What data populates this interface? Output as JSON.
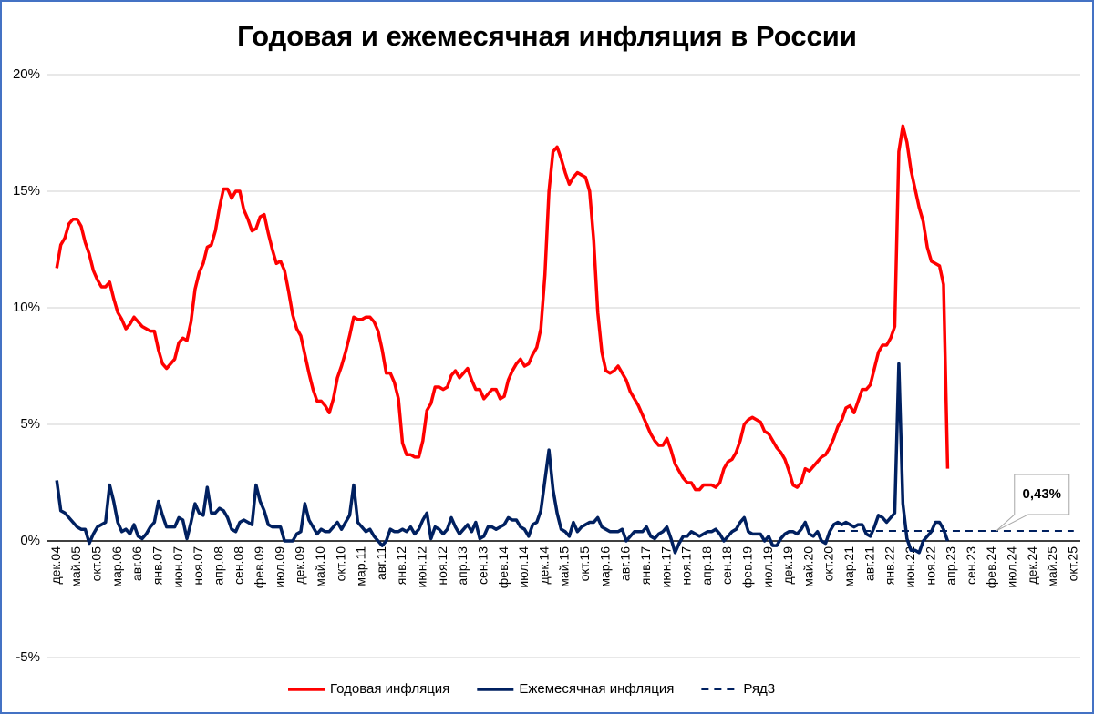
{
  "chart_data": {
    "type": "line",
    "title": "Годовая и ежемесячная инфляция в России",
    "categories": [
      "дек.04",
      null,
      null,
      null,
      null,
      "май.05",
      null,
      null,
      null,
      null,
      "окт.05",
      null,
      null,
      null,
      null,
      "мар.06",
      null,
      null,
      null,
      null,
      "авг.06",
      null,
      null,
      null,
      null,
      "янв.07",
      null,
      null,
      null,
      null,
      "июн.07",
      null,
      null,
      null,
      null,
      "ноя.07",
      null,
      null,
      null,
      null,
      "апр.08",
      null,
      null,
      null,
      null,
      "сен.08",
      null,
      null,
      null,
      null,
      "фев.09",
      null,
      null,
      null,
      null,
      "июл.09",
      null,
      null,
      null,
      null,
      "дек.09",
      null,
      null,
      null,
      null,
      "май.10",
      null,
      null,
      null,
      null,
      "окт.10",
      null,
      null,
      null,
      null,
      "мар.11",
      null,
      null,
      null,
      null,
      "авг.11",
      null,
      null,
      null,
      null,
      "янв.12",
      null,
      null,
      null,
      null,
      "июн.12",
      null,
      null,
      null,
      null,
      "ноя.12",
      null,
      null,
      null,
      null,
      "апр.13",
      null,
      null,
      null,
      null,
      "сен.13",
      null,
      null,
      null,
      null,
      "фев.14",
      null,
      null,
      null,
      null,
      "июл.14",
      null,
      null,
      null,
      null,
      "дек.14",
      null,
      null,
      null,
      null,
      "май.15",
      null,
      null,
      null,
      null,
      "окт.15",
      null,
      null,
      null,
      null,
      "мар.16",
      null,
      null,
      null,
      null,
      "авг.16",
      null,
      null,
      null,
      null,
      "янв.17",
      null,
      null,
      null,
      null,
      "июн.17",
      null,
      null,
      null,
      null,
      "ноя.17",
      null,
      null,
      null,
      null,
      "апр.18",
      null,
      null,
      null,
      null,
      "сен.18",
      null,
      null,
      null,
      null,
      "фев.19",
      null,
      null,
      null,
      null,
      "июл.19",
      null,
      null,
      null,
      null,
      "дек.19",
      null,
      null,
      null,
      null,
      "май.20",
      null,
      null,
      null,
      null,
      "окт.20",
      null,
      null,
      null,
      null,
      "мар.21",
      null,
      null,
      null,
      null,
      "авг.21",
      null,
      null,
      null,
      null,
      "янв.22",
      null,
      null,
      null,
      null,
      "июн.22",
      null,
      null,
      null,
      null,
      "ноя.22",
      null,
      null,
      null,
      null,
      "апр.23",
      null,
      null,
      null,
      null,
      "сен.23",
      null,
      null,
      null,
      null,
      "фев.24",
      null,
      null,
      null,
      null,
      "июл.24",
      null,
      null,
      null,
      null,
      "дек.24",
      null,
      null,
      null,
      null,
      "май.25",
      null,
      null,
      null,
      null,
      "окт.25"
    ],
    "series": [
      {
        "name": "Годовая инфляция",
        "color": "#ff0000",
        "dash": false,
        "values": [
          11.7,
          12.7,
          13.0,
          13.6,
          13.8,
          13.8,
          13.5,
          12.8,
          12.3,
          11.6,
          11.2,
          10.9,
          10.9,
          11.1,
          10.4,
          9.8,
          9.5,
          9.1,
          9.3,
          9.6,
          9.4,
          9.2,
          9.1,
          9.0,
          9.0,
          8.2,
          7.6,
          7.4,
          7.6,
          7.8,
          8.5,
          8.7,
          8.6,
          9.4,
          10.8,
          11.5,
          11.9,
          12.6,
          12.7,
          13.3,
          14.3,
          15.1,
          15.1,
          14.7,
          15.0,
          15.0,
          14.2,
          13.8,
          13.3,
          13.4,
          13.9,
          14.0,
          13.2,
          12.5,
          11.9,
          12.0,
          11.6,
          10.7,
          9.7,
          9.1,
          8.8,
          8.0,
          7.2,
          6.5,
          6.0,
          6.0,
          5.8,
          5.5,
          6.1,
          7.0,
          7.5,
          8.1,
          8.8,
          9.6,
          9.5,
          9.5,
          9.6,
          9.6,
          9.4,
          9.0,
          8.2,
          7.2,
          7.2,
          6.8,
          6.1,
          4.2,
          3.7,
          3.7,
          3.6,
          3.6,
          4.3,
          5.6,
          5.9,
          6.6,
          6.6,
          6.5,
          6.6,
          7.1,
          7.3,
          7.0,
          7.2,
          7.4,
          6.9,
          6.5,
          6.5,
          6.1,
          6.3,
          6.5,
          6.5,
          6.1,
          6.2,
          6.9,
          7.3,
          7.6,
          7.8,
          7.5,
          7.6,
          8.0,
          8.3,
          9.1,
          11.4,
          15.0,
          16.7,
          16.9,
          16.4,
          15.8,
          15.3,
          15.6,
          15.8,
          15.7,
          15.6,
          15.0,
          12.9,
          9.8,
          8.1,
          7.3,
          7.2,
          7.3,
          7.5,
          7.2,
          6.9,
          6.4,
          6.1,
          5.8,
          5.4,
          5.0,
          4.6,
          4.3,
          4.1,
          4.1,
          4.4,
          3.9,
          3.3,
          3.0,
          2.7,
          2.5,
          2.5,
          2.2,
          2.2,
          2.4,
          2.4,
          2.4,
          2.3,
          2.5,
          3.1,
          3.4,
          3.5,
          3.8,
          4.3,
          5.0,
          5.2,
          5.3,
          5.2,
          5.1,
          4.7,
          4.6,
          4.3,
          4.0,
          3.8,
          3.5,
          3.0,
          2.4,
          2.3,
          2.5,
          3.1,
          3.0,
          3.2,
          3.4,
          3.6,
          3.7,
          4.0,
          4.4,
          4.9,
          5.2,
          5.7,
          5.8,
          5.5,
          6.0,
          6.5,
          6.5,
          6.7,
          7.4,
          8.1,
          8.4,
          8.4,
          8.7,
          9.2,
          16.7,
          17.8,
          17.1,
          15.9,
          15.1,
          14.3,
          13.7,
          12.6,
          12.0,
          11.9,
          11.8,
          11.0,
          3.1,
          null,
          null,
          null,
          null,
          null,
          null,
          null,
          null,
          null,
          null,
          null,
          null,
          null,
          null,
          null,
          null,
          null,
          null,
          null,
          null,
          null,
          null,
          null,
          null,
          null,
          null,
          null,
          null,
          null,
          null,
          null
        ]
      },
      {
        "name": "Ежемесячная инфляция",
        "color": "#002060",
        "dash": false,
        "values": [
          2.6,
          1.3,
          1.2,
          1.0,
          0.8,
          0.6,
          0.5,
          0.5,
          -0.1,
          0.3,
          0.6,
          0.7,
          0.8,
          2.4,
          1.7,
          0.8,
          0.4,
          0.5,
          0.3,
          0.7,
          0.2,
          0.1,
          0.3,
          0.6,
          0.8,
          1.7,
          1.1,
          0.6,
          0.6,
          0.6,
          1.0,
          0.9,
          0.1,
          0.8,
          1.6,
          1.2,
          1.1,
          2.3,
          1.2,
          1.2,
          1.4,
          1.3,
          1.0,
          0.5,
          0.4,
          0.8,
          0.9,
          0.8,
          0.7,
          2.4,
          1.7,
          1.3,
          0.7,
          0.6,
          0.6,
          0.6,
          0.0,
          0.0,
          0.0,
          0.3,
          0.4,
          1.6,
          0.9,
          0.6,
          0.3,
          0.5,
          0.4,
          0.4,
          0.6,
          0.8,
          0.5,
          0.8,
          1.1,
          2.4,
          0.8,
          0.6,
          0.4,
          0.5,
          0.2,
          0.0,
          -0.2,
          0.0,
          0.5,
          0.4,
          0.4,
          0.5,
          0.4,
          0.6,
          0.3,
          0.5,
          0.9,
          1.2,
          0.1,
          0.6,
          0.5,
          0.3,
          0.5,
          1.0,
          0.6,
          0.3,
          0.5,
          0.7,
          0.4,
          0.8,
          0.1,
          0.2,
          0.6,
          0.6,
          0.5,
          0.6,
          0.7,
          1.0,
          0.9,
          0.9,
          0.6,
          0.5,
          0.2,
          0.7,
          0.8,
          1.3,
          2.6,
          3.9,
          2.2,
          1.2,
          0.5,
          0.4,
          0.2,
          0.8,
          0.4,
          0.6,
          0.7,
          0.8,
          0.8,
          1.0,
          0.6,
          0.5,
          0.4,
          0.4,
          0.4,
          0.5,
          0.0,
          0.2,
          0.4,
          0.4,
          0.4,
          0.6,
          0.2,
          0.1,
          0.3,
          0.4,
          0.6,
          0.1,
          -0.5,
          -0.1,
          0.2,
          0.2,
          0.4,
          0.3,
          0.2,
          0.3,
          0.4,
          0.4,
          0.5,
          0.3,
          0.0,
          0.2,
          0.4,
          0.5,
          0.8,
          1.0,
          0.4,
          0.3,
          0.3,
          0.3,
          0.0,
          0.2,
          -0.2,
          -0.2,
          0.1,
          0.3,
          0.4,
          0.4,
          0.3,
          0.5,
          0.8,
          0.3,
          0.2,
          0.4,
          0.0,
          -0.1,
          0.4,
          0.7,
          0.8,
          0.7,
          0.8,
          0.7,
          0.6,
          0.7,
          0.7,
          0.3,
          0.2,
          0.6,
          1.1,
          1.0,
          0.8,
          1.0,
          1.2,
          7.6,
          1.6,
          0.1,
          -0.4,
          -0.4,
          -0.5,
          0.0,
          0.2,
          0.4,
          0.8,
          0.8,
          0.5,
          0.0,
          null,
          null,
          null,
          null,
          null,
          null,
          null,
          null,
          null,
          null,
          null,
          null,
          null,
          null,
          null,
          null,
          null,
          null,
          null,
          null,
          null,
          null,
          null,
          null,
          null,
          null,
          null,
          null,
          null,
          null,
          null
        ]
      },
      {
        "name": "Ряд3",
        "color": "#002060",
        "dash": true,
        "values": [
          null,
          null,
          null,
          null,
          null,
          null,
          null,
          null,
          null,
          null,
          null,
          null,
          null,
          null,
          null,
          null,
          null,
          null,
          null,
          null,
          null,
          null,
          null,
          null,
          null,
          null,
          null,
          null,
          null,
          null,
          null,
          null,
          null,
          null,
          null,
          null,
          null,
          null,
          null,
          null,
          null,
          null,
          null,
          null,
          null,
          null,
          null,
          null,
          null,
          null,
          null,
          null,
          null,
          null,
          null,
          null,
          null,
          null,
          null,
          null,
          null,
          null,
          null,
          null,
          null,
          null,
          null,
          null,
          null,
          null,
          null,
          null,
          null,
          null,
          null,
          null,
          null,
          null,
          null,
          null,
          null,
          null,
          null,
          null,
          null,
          null,
          null,
          null,
          null,
          null,
          null,
          null,
          null,
          null,
          null,
          null,
          null,
          null,
          null,
          null,
          null,
          null,
          null,
          null,
          null,
          null,
          null,
          null,
          null,
          null,
          null,
          null,
          null,
          null,
          null,
          null,
          null,
          null,
          null,
          null,
          null,
          null,
          null,
          null,
          null,
          null,
          null,
          null,
          null,
          null,
          null,
          null,
          null,
          null,
          null,
          null,
          null,
          null,
          null,
          null,
          null,
          null,
          null,
          null,
          null,
          null,
          null,
          null,
          null,
          null,
          null,
          null,
          null,
          null,
          null,
          null,
          null,
          null,
          null,
          null,
          null,
          null,
          null,
          null,
          null,
          null,
          null,
          null,
          null,
          null,
          null,
          null,
          null,
          null,
          null,
          null,
          null,
          null,
          null,
          null,
          null,
          null,
          null,
          null,
          null,
          null,
          null,
          null,
          null,
          null,
          null,
          null,
          0.43,
          0.43,
          0.43,
          0.43,
          0.43,
          0.43,
          0.43,
          0.43,
          0.43,
          0.43,
          0.43,
          0.43,
          0.43,
          0.43,
          0.43,
          0.43,
          0.43,
          0.43,
          0.43,
          0.43,
          0.43,
          0.43,
          0.43,
          0.43,
          0.43,
          0.43,
          0.43,
          0.43,
          0.43,
          0.43,
          0.43,
          0.43,
          0.43,
          0.43,
          0.43,
          0.43,
          0.43,
          0.43,
          0.43,
          0.43,
          0.43,
          0.43,
          0.43,
          0.43,
          0.43,
          0.43,
          0.43,
          0.43,
          0.43,
          0.43,
          0.43,
          0.43,
          0.43,
          0.43,
          0.43,
          0.43,
          0.43,
          0.43,
          0.43
        ]
      }
    ],
    "annotation": "0,43%",
    "ylim": [
      -5,
      20
    ],
    "yticks": [
      {
        "value": -5,
        "label": "-5%"
      },
      {
        "value": 0,
        "label": "0%"
      },
      {
        "value": 5,
        "label": "5%"
      },
      {
        "value": 10,
        "label": "10%"
      },
      {
        "value": 15,
        "label": "15%"
      },
      {
        "value": 20,
        "label": "20%"
      }
    ],
    "grid": true,
    "legend": "bottom"
  }
}
